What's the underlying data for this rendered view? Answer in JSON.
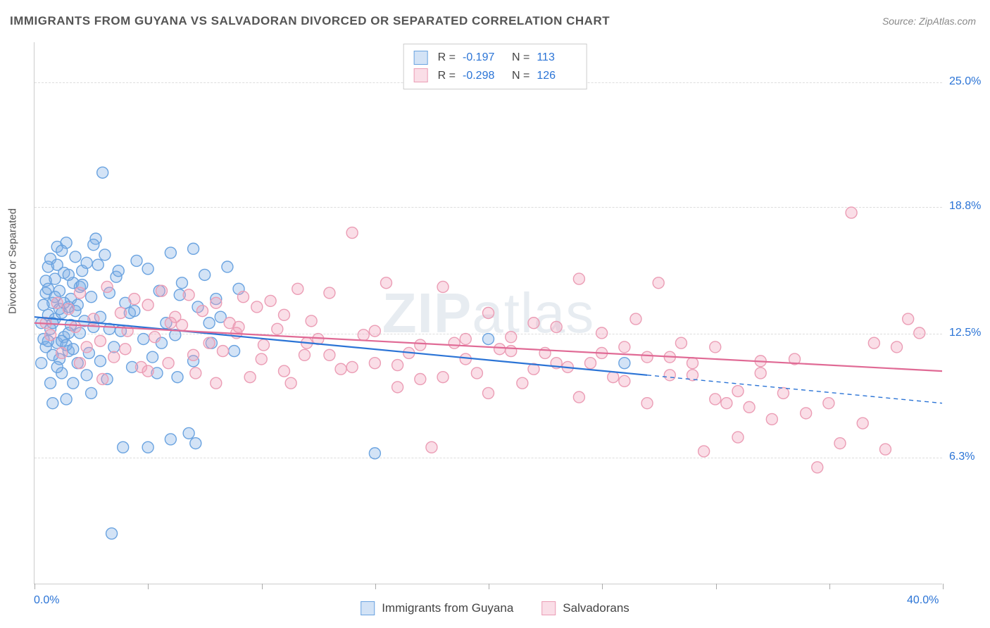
{
  "title": "IMMIGRANTS FROM GUYANA VS SALVADORAN DIVORCED OR SEPARATED CORRELATION CHART",
  "source": "Source: ZipAtlas.com",
  "watermark_a": "ZIP",
  "watermark_b": "atlas",
  "chart": {
    "type": "scatter",
    "ylabel": "Divorced or Separated",
    "xlim": [
      0,
      40
    ],
    "ylim": [
      0,
      27
    ],
    "xticks_label_min": "0.0%",
    "xticks_label_max": "40.0%",
    "yticks": [
      {
        "v": 6.3,
        "label": "6.3%"
      },
      {
        "v": 12.5,
        "label": "12.5%"
      },
      {
        "v": 18.8,
        "label": "18.8%"
      },
      {
        "v": 25.0,
        "label": "25.0%"
      }
    ],
    "xtick_positions": [
      0,
      5,
      10,
      15,
      20,
      25,
      30,
      35,
      40
    ],
    "background_color": "#ffffff",
    "grid_color": "#dddddd",
    "marker_radius": 8,
    "marker_stroke_width": 1.4,
    "line_width": 2.2,
    "series": [
      {
        "name": "Immigrants from Guyana",
        "fill": "rgba(130,175,230,0.35)",
        "stroke": "#6aa3e0",
        "line_color": "#2b74d6",
        "R": "-0.197",
        "N": "113",
        "trend": {
          "x1": 0,
          "y1": 13.3,
          "x2": 27,
          "y2": 10.4
        },
        "trend_dash": {
          "x1": 27,
          "y1": 10.4,
          "x2": 40,
          "y2": 9.0
        },
        "points": [
          [
            0.3,
            13.0
          ],
          [
            0.4,
            12.2
          ],
          [
            0.5,
            14.5
          ],
          [
            0.5,
            11.8
          ],
          [
            0.6,
            13.4
          ],
          [
            0.6,
            15.8
          ],
          [
            0.7,
            10.0
          ],
          [
            0.7,
            12.7
          ],
          [
            0.8,
            14.0
          ],
          [
            0.8,
            9.0
          ],
          [
            0.9,
            13.2
          ],
          [
            0.9,
            15.2
          ],
          [
            1.0,
            12.0
          ],
          [
            1.0,
            16.8
          ],
          [
            1.1,
            11.2
          ],
          [
            1.1,
            14.6
          ],
          [
            1.2,
            13.5
          ],
          [
            1.2,
            10.5
          ],
          [
            1.3,
            15.5
          ],
          [
            1.3,
            12.3
          ],
          [
            1.4,
            17.0
          ],
          [
            1.4,
            9.2
          ],
          [
            1.5,
            13.8
          ],
          [
            1.5,
            11.6
          ],
          [
            1.6,
            14.2
          ],
          [
            1.6,
            12.9
          ],
          [
            1.7,
            15.0
          ],
          [
            1.8,
            16.3
          ],
          [
            1.8,
            13.6
          ],
          [
            1.9,
            11.0
          ],
          [
            2.0,
            14.8
          ],
          [
            2.0,
            12.5
          ],
          [
            2.1,
            15.6
          ],
          [
            2.2,
            13.1
          ],
          [
            2.3,
            16.0
          ],
          [
            2.4,
            11.5
          ],
          [
            2.5,
            14.3
          ],
          [
            2.6,
            12.8
          ],
          [
            2.8,
            15.9
          ],
          [
            2.9,
            13.3
          ],
          [
            3.0,
            20.5
          ],
          [
            3.1,
            16.4
          ],
          [
            3.2,
            10.2
          ],
          [
            3.3,
            14.5
          ],
          [
            3.5,
            11.8
          ],
          [
            3.6,
            15.3
          ],
          [
            3.8,
            12.6
          ],
          [
            4.0,
            14.0
          ],
          [
            4.2,
            13.5
          ],
          [
            4.5,
            16.1
          ],
          [
            4.8,
            12.2
          ],
          [
            5.0,
            15.7
          ],
          [
            5.2,
            11.3
          ],
          [
            5.5,
            14.6
          ],
          [
            5.8,
            13.0
          ],
          [
            6.0,
            7.2
          ],
          [
            6.0,
            16.5
          ],
          [
            6.2,
            12.4
          ],
          [
            6.5,
            15.0
          ],
          [
            6.8,
            7.5
          ],
          [
            7.0,
            16.7
          ],
          [
            7.1,
            7.0
          ],
          [
            7.2,
            13.8
          ],
          [
            7.5,
            15.4
          ],
          [
            7.8,
            12.0
          ],
          [
            8.0,
            14.2
          ],
          [
            8.2,
            13.3
          ],
          [
            8.5,
            15.8
          ],
          [
            8.8,
            11.6
          ],
          [
            9.0,
            14.7
          ],
          [
            2.7,
            17.2
          ],
          [
            3.4,
            2.5
          ],
          [
            3.9,
            6.8
          ],
          [
            4.3,
            10.8
          ],
          [
            1.7,
            10.0
          ],
          [
            2.5,
            9.5
          ],
          [
            5.4,
            10.5
          ],
          [
            6.4,
            14.4
          ],
          [
            20.0,
            12.2
          ],
          [
            26.0,
            11.0
          ],
          [
            15.0,
            6.5
          ],
          [
            0.3,
            11.0
          ],
          [
            0.4,
            13.9
          ],
          [
            0.5,
            15.1
          ],
          [
            0.6,
            12.1
          ],
          [
            0.6,
            14.7
          ],
          [
            0.7,
            16.2
          ],
          [
            0.8,
            11.4
          ],
          [
            0.8,
            13.0
          ],
          [
            0.9,
            14.3
          ],
          [
            1.0,
            15.9
          ],
          [
            1.0,
            10.8
          ],
          [
            1.1,
            13.7
          ],
          [
            1.2,
            12.1
          ],
          [
            1.2,
            16.6
          ],
          [
            1.3,
            14.0
          ],
          [
            1.4,
            11.9
          ],
          [
            1.5,
            15.4
          ],
          [
            1.5,
            12.5
          ],
          [
            1.7,
            11.7
          ],
          [
            1.9,
            13.9
          ],
          [
            2.1,
            14.9
          ],
          [
            2.3,
            10.4
          ],
          [
            2.6,
            16.9
          ],
          [
            2.9,
            11.1
          ],
          [
            3.3,
            12.7
          ],
          [
            3.7,
            15.6
          ],
          [
            4.4,
            13.6
          ],
          [
            5.0,
            6.8
          ],
          [
            5.6,
            12.0
          ],
          [
            6.3,
            10.3
          ],
          [
            7.0,
            11.1
          ],
          [
            7.7,
            13.0
          ]
        ]
      },
      {
        "name": "Salvadorans",
        "fill": "rgba(240,160,185,0.35)",
        "stroke": "#eb9db5",
        "line_color": "#e06a95",
        "R": "-0.298",
        "N": "126",
        "trend": {
          "x1": 0,
          "y1": 13.0,
          "x2": 40,
          "y2": 10.6
        },
        "points": [
          [
            0.5,
            13.0
          ],
          [
            0.7,
            12.4
          ],
          [
            1.0,
            14.0
          ],
          [
            1.2,
            11.5
          ],
          [
            1.5,
            13.7
          ],
          [
            1.8,
            12.8
          ],
          [
            2.0,
            14.5
          ],
          [
            2.3,
            11.8
          ],
          [
            2.6,
            13.2
          ],
          [
            2.9,
            12.1
          ],
          [
            3.2,
            14.8
          ],
          [
            3.5,
            11.3
          ],
          [
            3.8,
            13.5
          ],
          [
            4.1,
            12.6
          ],
          [
            4.4,
            14.2
          ],
          [
            4.7,
            10.8
          ],
          [
            5.0,
            13.9
          ],
          [
            5.3,
            12.3
          ],
          [
            5.6,
            14.6
          ],
          [
            5.9,
            11.0
          ],
          [
            6.2,
            13.3
          ],
          [
            6.5,
            12.9
          ],
          [
            6.8,
            14.4
          ],
          [
            7.1,
            10.5
          ],
          [
            7.4,
            13.6
          ],
          [
            7.7,
            12.0
          ],
          [
            8.0,
            14.0
          ],
          [
            8.3,
            11.6
          ],
          [
            8.6,
            13.0
          ],
          [
            8.9,
            12.5
          ],
          [
            9.2,
            14.3
          ],
          [
            9.5,
            10.3
          ],
          [
            9.8,
            13.8
          ],
          [
            10.1,
            11.9
          ],
          [
            10.4,
            14.1
          ],
          [
            10.7,
            12.7
          ],
          [
            11.0,
            13.4
          ],
          [
            11.3,
            10.0
          ],
          [
            11.6,
            14.7
          ],
          [
            11.9,
            11.4
          ],
          [
            12.2,
            13.1
          ],
          [
            12.5,
            12.2
          ],
          [
            13.0,
            14.5
          ],
          [
            13.5,
            10.7
          ],
          [
            14.0,
            17.5
          ],
          [
            14.5,
            12.4
          ],
          [
            15.0,
            11.0
          ],
          [
            15.5,
            15.0
          ],
          [
            16.0,
            10.9
          ],
          [
            16.5,
            11.5
          ],
          [
            17.0,
            10.2
          ],
          [
            17.5,
            6.8
          ],
          [
            18.0,
            14.8
          ],
          [
            18.5,
            12.0
          ],
          [
            19.0,
            11.2
          ],
          [
            19.5,
            10.5
          ],
          [
            20.0,
            13.5
          ],
          [
            20.5,
            11.7
          ],
          [
            21.0,
            12.3
          ],
          [
            21.5,
            10.0
          ],
          [
            22.0,
            13.0
          ],
          [
            22.5,
            11.5
          ],
          [
            23.0,
            12.8
          ],
          [
            23.5,
            10.8
          ],
          [
            24.0,
            15.2
          ],
          [
            24.5,
            11.0
          ],
          [
            25.0,
            12.5
          ],
          [
            25.5,
            10.3
          ],
          [
            26.0,
            11.8
          ],
          [
            26.5,
            13.2
          ],
          [
            27.0,
            11.3
          ],
          [
            27.5,
            15.0
          ],
          [
            28.0,
            10.4
          ],
          [
            28.5,
            12.0
          ],
          [
            29.0,
            11.0
          ],
          [
            29.5,
            6.6
          ],
          [
            30.0,
            9.2
          ],
          [
            30.5,
            9.0
          ],
          [
            31.0,
            7.3
          ],
          [
            31.5,
            8.8
          ],
          [
            32.0,
            10.5
          ],
          [
            32.5,
            8.2
          ],
          [
            33.0,
            9.5
          ],
          [
            33.5,
            11.2
          ],
          [
            34.0,
            8.5
          ],
          [
            34.5,
            5.8
          ],
          [
            35.0,
            9.0
          ],
          [
            35.5,
            7.0
          ],
          [
            36.0,
            18.5
          ],
          [
            36.5,
            8.0
          ],
          [
            37.0,
            12.0
          ],
          [
            37.5,
            6.7
          ],
          [
            38.0,
            11.8
          ],
          [
            38.5,
            13.2
          ],
          [
            39.0,
            12.5
          ],
          [
            2.0,
            11.0
          ],
          [
            3.0,
            10.2
          ],
          [
            4.0,
            11.7
          ],
          [
            5.0,
            10.6
          ],
          [
            6.0,
            13.0
          ],
          [
            7.0,
            11.4
          ],
          [
            8.0,
            10.0
          ],
          [
            9.0,
            12.8
          ],
          [
            10.0,
            11.2
          ],
          [
            11.0,
            10.6
          ],
          [
            12.0,
            12.0
          ],
          [
            13.0,
            11.4
          ],
          [
            14.0,
            10.8
          ],
          [
            15.0,
            12.6
          ],
          [
            16.0,
            9.8
          ],
          [
            17.0,
            11.9
          ],
          [
            18.0,
            10.3
          ],
          [
            19.0,
            12.2
          ],
          [
            20.0,
            9.5
          ],
          [
            21.0,
            11.6
          ],
          [
            22.0,
            10.7
          ],
          [
            23.0,
            11.0
          ],
          [
            24.0,
            9.3
          ],
          [
            25.0,
            11.5
          ],
          [
            26.0,
            10.1
          ],
          [
            27.0,
            9.0
          ],
          [
            28.0,
            11.3
          ],
          [
            29.0,
            10.4
          ],
          [
            30.0,
            11.8
          ],
          [
            31.0,
            9.6
          ],
          [
            32.0,
            11.1
          ]
        ]
      }
    ]
  },
  "legend_bottom": [
    {
      "label": "Immigrants from Guyana",
      "fill": "rgba(130,175,230,0.5)",
      "stroke": "#6aa3e0"
    },
    {
      "label": "Salvadorans",
      "fill": "rgba(240,160,185,0.5)",
      "stroke": "#eb9db5"
    }
  ]
}
